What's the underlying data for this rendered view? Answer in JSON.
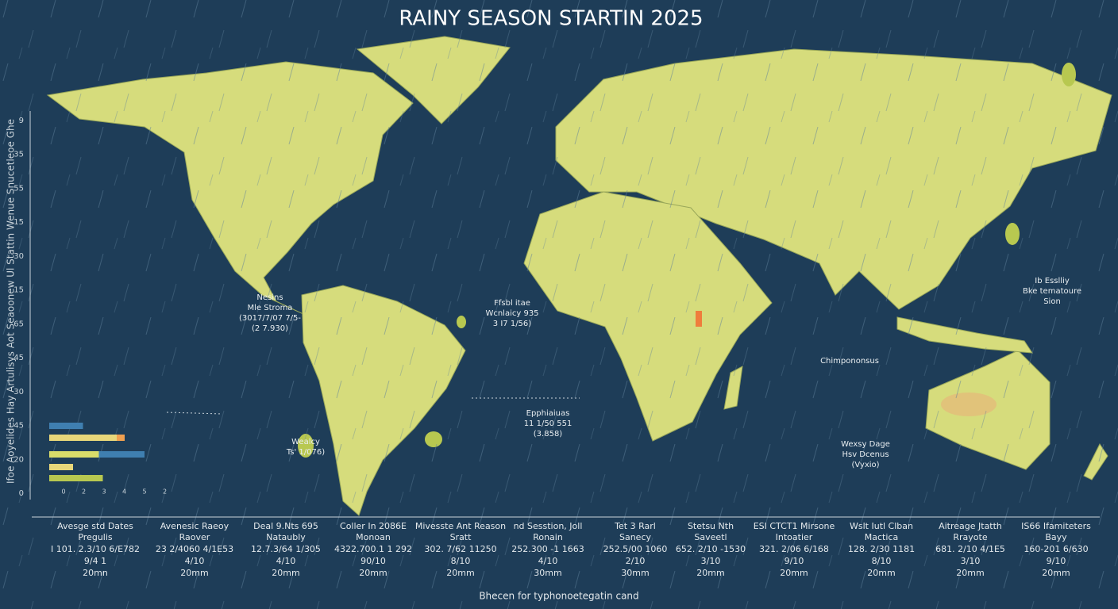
{
  "title": "RAINY SEASON STARTIN 2025",
  "side_label": "Ifoe Aoyelides Hay Artulisys Aot Seaoonew Ul Stattin Wenue Snucetleoe Ghe",
  "axis_ticks": [
    "9",
    "35",
    "55",
    "15",
    "30",
    "15",
    "65",
    "45",
    "30",
    "45",
    "20",
    "0"
  ],
  "map_labels": [
    {
      "lines": [
        "Nesins",
        "Mle Stroma",
        "(3017/7/07 7/5-",
        "(2 7.930)"
      ]
    },
    {
      "lines": [
        "Ffsbl itae",
        "Wcnlaicy 935",
        "3 I7 1/56)"
      ]
    },
    {
      "lines": [
        "Ib Esslliy",
        "Bke tematoure",
        "Sion"
      ]
    },
    {
      "lines": [
        "Chimpononsus"
      ]
    },
    {
      "lines": [
        "Epphiaiuas",
        "11 1/50 551",
        "(3.858)"
      ]
    },
    {
      "lines": [
        "Wealcy",
        "Ts' 1/076)"
      ]
    },
    {
      "lines": [
        "Wexsy Dage",
        "Hsv Dcenus",
        "(Vyxio)"
      ]
    }
  ],
  "bar_chart": {
    "xlim": [
      0,
      6
    ],
    "tick_labels": [
      "0",
      "2",
      "3",
      "4",
      "5",
      "2"
    ],
    "bars": [
      {
        "values": [
          1.7
        ],
        "colors": [
          "#3f7fb0"
        ]
      },
      {
        "values": [
          3.4,
          0.4
        ],
        "colors": [
          "#e8d77a",
          "#f0a050"
        ]
      },
      {
        "values": [
          2.5,
          2.3
        ],
        "colors": [
          "#d8dc6a",
          "#3f7fb0"
        ]
      },
      {
        "values": [
          1.2
        ],
        "colors": [
          "#e8d77a"
        ]
      },
      {
        "values": [
          2.7
        ],
        "colors": [
          "#b8c850"
        ]
      }
    ]
  },
  "table": {
    "columns": [
      {
        "header": "Avesge std Dates",
        "rows": [
          "Pregulis",
          "I 101. 2.3/10 6/E782",
          "9/4 1",
          "20mn"
        ]
      },
      {
        "header": "Avenesic Raeoy",
        "rows": [
          "Raover",
          "23 2/4060 4/1E53",
          "4/10",
          "20mm"
        ]
      },
      {
        "header": "Deal 9.Nts 695",
        "rows": [
          "Nataubly",
          "12.7.3/64 1/305",
          "4/10",
          "20mm"
        ]
      },
      {
        "header": "Coller In 2086E",
        "rows": [
          "Monoan",
          "4322.700.1 1 292",
          "90/10",
          "20mm"
        ]
      },
      {
        "header": "Mivesste Ant Reason",
        "rows": [
          "Sratt",
          "302. 7/62 11250",
          "8/10",
          "20mm"
        ]
      },
      {
        "header": "nd Sesstion, Joll",
        "rows": [
          "Ronain",
          "252.300 -1 1663",
          "4/10",
          "30mm"
        ]
      },
      {
        "header": "Tet 3 Rarl",
        "rows": [
          "Sanecy",
          "252.5/00 1060",
          "2/10",
          "30mm"
        ]
      },
      {
        "header": "Stetsu Nth",
        "rows": [
          "Saveetl",
          "652. 2/10 -1530",
          "3/10",
          "20mm"
        ]
      },
      {
        "header": "ESI CTCT1 Mirsone",
        "rows": [
          "Intoatier",
          "321. 2/06 6/168",
          "9/10",
          "20mm"
        ]
      },
      {
        "header": "Wslt Iutl Clban",
        "rows": [
          "Mactica",
          "128. 2/30 1181",
          "8/10",
          "20mm"
        ]
      },
      {
        "header": "Aitreage Jtatth",
        "rows": [
          "Rrayote",
          "681. 2/10 4/1E5",
          "3/10",
          "20mm"
        ]
      },
      {
        "header": "IS66 Ifamiteters",
        "rows": [
          "Bayy",
          "160-201 6/630",
          "9/10",
          "20mm"
        ]
      }
    ]
  },
  "footer": "Bhecen for typhonoetegatin cand"
}
